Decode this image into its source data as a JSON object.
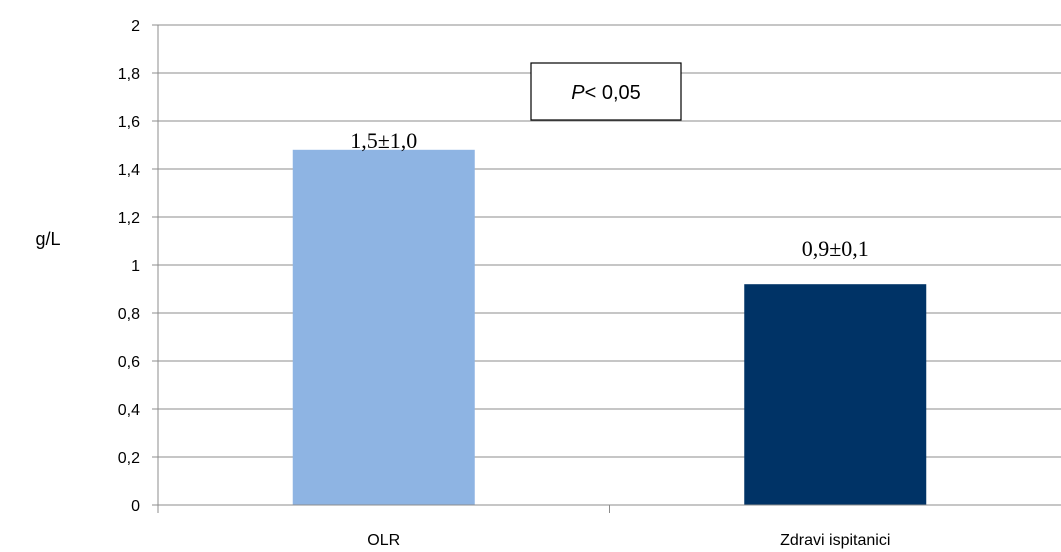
{
  "chart_data": {
    "type": "bar",
    "categories": [
      "OLR",
      "Zdravi ispitanici"
    ],
    "values": [
      1.48,
      0.92
    ],
    "data_labels": [
      "1,5±1,0",
      "0,9±0,1"
    ],
    "colors": [
      "#8EB4E3",
      "#003366"
    ],
    "ylabel": "g/L",
    "xlabel": "",
    "title": "",
    "ylim": [
      0,
      2
    ],
    "y_ticks": [
      0,
      0.2,
      0.4,
      0.6,
      0.8,
      1,
      1.2,
      1.4,
      1.6,
      1.8,
      2
    ],
    "y_tick_labels": [
      "0",
      "0,2",
      "0,4",
      "0,6",
      "0,8",
      "1",
      "1,2",
      "1,4",
      "1,6",
      "1,8",
      "2"
    ],
    "grid": true,
    "annotation": {
      "italic": "P",
      "text": "< 0,05"
    }
  }
}
